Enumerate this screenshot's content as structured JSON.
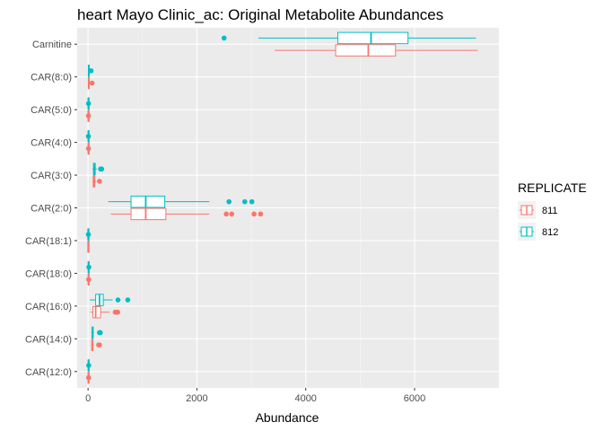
{
  "chart_data": {
    "type": "boxplot",
    "orientation": "horizontal",
    "title": "heart Mayo Clinic_ac: Original Metabolite Abundances",
    "xlabel": "Abundance",
    "ylabel": "",
    "xlim": [
      -200,
      7550
    ],
    "x_ticks": [
      0,
      2000,
      4000,
      6000
    ],
    "x_tick_labels": [
      "0",
      "2000",
      "4000",
      "6000"
    ],
    "grid": true,
    "legend": {
      "title": "REPLICATE",
      "position": "right"
    },
    "categories": [
      "CAR(12:0)",
      "CAR(14:0)",
      "CAR(16:0)",
      "CAR(18:0)",
      "CAR(18:1)",
      "CAR(2:0)",
      "CAR(3:0)",
      "CAR(4:0)",
      "CAR(5:0)",
      "CAR(8:0)",
      "Carnitine"
    ],
    "series": [
      {
        "name": "811",
        "color": "#F8766D",
        "boxes": [
          {
            "min": 0,
            "q1": 3,
            "median": 6,
            "q3": 9,
            "max": 14,
            "outliers": [
              10
            ]
          },
          {
            "min": 55,
            "q1": 68,
            "median": 78,
            "q3": 90,
            "max": 105,
            "outliers": [
              195,
              210
            ]
          },
          {
            "min": 45,
            "q1": 90,
            "median": 140,
            "q3": 230,
            "max": 400,
            "outliers": [
              500,
              520,
              540,
              545
            ]
          },
          {
            "min": 0,
            "q1": 4,
            "median": 7,
            "q3": 11,
            "max": 15,
            "outliers": [
              12
            ]
          },
          {
            "min": 0,
            "q1": 1,
            "median": 2,
            "q3": 3,
            "max": 4,
            "outliers": []
          },
          {
            "min": 420,
            "q1": 790,
            "median": 1060,
            "q3": 1430,
            "max": 2230,
            "outliers": [
              2540,
              2640,
              3050,
              3170
            ]
          },
          {
            "min": 80,
            "q1": 95,
            "median": 108,
            "q3": 125,
            "max": 150,
            "outliers": [
              210
            ]
          },
          {
            "min": 0,
            "q1": 4,
            "median": 6,
            "q3": 9,
            "max": 13,
            "outliers": [
              8
            ]
          },
          {
            "min": 0,
            "q1": 3,
            "median": 5,
            "q3": 8,
            "max": 12,
            "outliers": [
              8
            ]
          },
          {
            "min": 0,
            "q1": 5,
            "median": 12,
            "q3": 20,
            "max": 35,
            "outliers": [
              75
            ]
          },
          {
            "min": 3430,
            "q1": 4550,
            "median": 5150,
            "q3": 5650,
            "max": 7160,
            "outliers": []
          }
        ]
      },
      {
        "name": "812",
        "color": "#00BFC4",
        "boxes": [
          {
            "min": 0,
            "q1": 4,
            "median": 7,
            "q3": 10,
            "max": 15,
            "outliers": [
              12
            ]
          },
          {
            "min": 60,
            "q1": 72,
            "median": 82,
            "q3": 95,
            "max": 110,
            "outliers": [
              210,
              225
            ]
          },
          {
            "min": 30,
            "q1": 140,
            "median": 210,
            "q3": 280,
            "max": 450,
            "outliers": [
              550,
              730
            ]
          },
          {
            "min": 0,
            "q1": 4,
            "median": 8,
            "q3": 12,
            "max": 16,
            "outliers": [
              15
            ]
          },
          {
            "min": 0,
            "q1": 1,
            "median": 2,
            "q3": 3,
            "max": 5,
            "outliers": [
              6
            ]
          },
          {
            "min": 370,
            "q1": 790,
            "median": 1060,
            "q3": 1410,
            "max": 2230,
            "outliers": [
              2590,
              2880,
              3010
            ]
          },
          {
            "min": 80,
            "q1": 100,
            "median": 115,
            "q3": 132,
            "max": 160,
            "outliers": [
              230,
              250
            ]
          },
          {
            "min": 0,
            "q1": 3,
            "median": 6,
            "q3": 9,
            "max": 14,
            "outliers": [
              7
            ]
          },
          {
            "min": 0,
            "q1": 3,
            "median": 6,
            "q3": 9,
            "max": 13,
            "outliers": [
              9
            ]
          },
          {
            "min": 0,
            "q1": 6,
            "median": 12,
            "q3": 20,
            "max": 30,
            "outliers": [
              55
            ]
          },
          {
            "min": 3130,
            "q1": 4590,
            "median": 5200,
            "q3": 5880,
            "max": 7130,
            "outliers": [
              2500
            ]
          }
        ]
      }
    ]
  },
  "colors": {
    "panel_background": "#EBEBEB",
    "grid_major": "#FFFFFF",
    "grid_minor": "#F5F5F5",
    "legend_key_background": "#F2F2F2"
  }
}
